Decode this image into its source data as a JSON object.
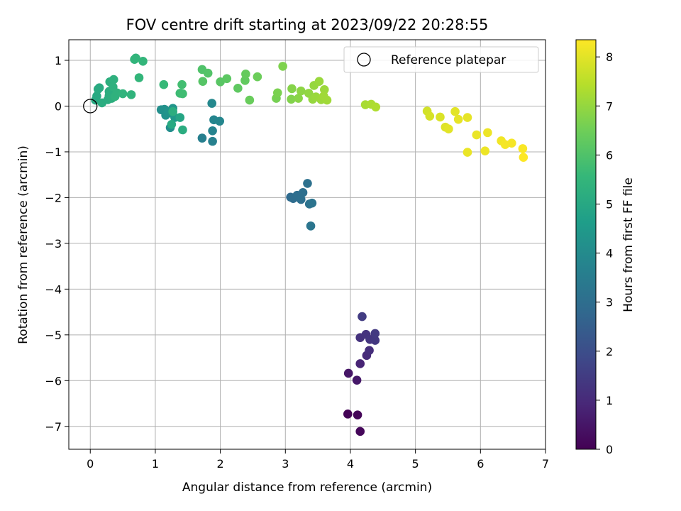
{
  "chart_data": {
    "type": "scatter",
    "title": "FOV centre drift starting at 2023/09/22 20:28:55",
    "xlabel": "Angular distance from reference (arcmin)",
    "ylabel": "Rotation from reference (arcmin)",
    "colorbar_label": "Hours from first FF file",
    "xlim": [
      -0.33,
      7.0
    ],
    "ylim": [
      -7.5,
      1.45
    ],
    "xticks": [
      0,
      1,
      2,
      3,
      4,
      5,
      6,
      7
    ],
    "yticks": [
      1,
      0,
      -1,
      -2,
      -3,
      -4,
      -5,
      -6,
      -7
    ],
    "colorbar_range": [
      0,
      8.35
    ],
    "colorbar_ticks": [
      0,
      1,
      2,
      3,
      4,
      5,
      6,
      7,
      8
    ],
    "colormap": "viridis",
    "grid": true,
    "legend": {
      "label": "Reference platepar",
      "placement": "top-right"
    },
    "reference_point": {
      "x": 0,
      "y": 0
    },
    "points": [
      {
        "x": 3.96,
        "y": -6.73,
        "h": 0.05
      },
      {
        "x": 4.11,
        "y": -6.75,
        "h": 0.1
      },
      {
        "x": 4.15,
        "y": -7.11,
        "h": 0.15
      },
      {
        "x": 3.97,
        "y": -5.84,
        "h": 0.5
      },
      {
        "x": 4.1,
        "y": -5.99,
        "h": 0.55
      },
      {
        "x": 4.15,
        "y": -5.63,
        "h": 0.85
      },
      {
        "x": 4.25,
        "y": -5.45,
        "h": 1.0
      },
      {
        "x": 4.29,
        "y": -5.34,
        "h": 1.1
      },
      {
        "x": 4.15,
        "y": -5.06,
        "h": 1.2
      },
      {
        "x": 4.24,
        "y": -4.99,
        "h": 1.25
      },
      {
        "x": 4.3,
        "y": -5.1,
        "h": 1.3
      },
      {
        "x": 4.38,
        "y": -5.12,
        "h": 1.35
      },
      {
        "x": 4.38,
        "y": -4.97,
        "h": 1.4
      },
      {
        "x": 4.18,
        "y": -4.6,
        "h": 1.5
      },
      {
        "x": 3.08,
        "y": -1.99,
        "h": 2.9
      },
      {
        "x": 3.12,
        "y": -2.02,
        "h": 2.95
      },
      {
        "x": 3.18,
        "y": -1.95,
        "h": 3.0
      },
      {
        "x": 3.24,
        "y": -2.04,
        "h": 3.05
      },
      {
        "x": 3.27,
        "y": -1.89,
        "h": 3.05
      },
      {
        "x": 3.34,
        "y": -1.69,
        "h": 3.1
      },
      {
        "x": 3.37,
        "y": -2.14,
        "h": 3.15
      },
      {
        "x": 3.41,
        "y": -2.12,
        "h": 3.2
      },
      {
        "x": 3.39,
        "y": -2.62,
        "h": 3.25
      },
      {
        "x": 1.72,
        "y": -0.7,
        "h": 3.6
      },
      {
        "x": 1.88,
        "y": -0.77,
        "h": 3.65
      },
      {
        "x": 1.88,
        "y": -0.54,
        "h": 3.75
      },
      {
        "x": 1.9,
        "y": -0.3,
        "h": 3.8
      },
      {
        "x": 1.99,
        "y": -0.33,
        "h": 3.85
      },
      {
        "x": 1.87,
        "y": 0.06,
        "h": 3.9
      },
      {
        "x": 1.23,
        "y": -0.47,
        "h": 4.1
      },
      {
        "x": 1.09,
        "y": -0.08,
        "h": 4.15
      },
      {
        "x": 1.14,
        "y": -0.07,
        "h": 4.2
      },
      {
        "x": 1.16,
        "y": -0.2,
        "h": 4.25
      },
      {
        "x": 1.2,
        "y": -0.12,
        "h": 4.3
      },
      {
        "x": 1.27,
        "y": -0.05,
        "h": 4.35
      },
      {
        "x": 1.26,
        "y": -0.16,
        "h": 4.4
      },
      {
        "x": 1.3,
        "y": -0.25,
        "h": 4.45
      },
      {
        "x": 1.38,
        "y": -0.25,
        "h": 4.9
      },
      {
        "x": 1.25,
        "y": -0.4,
        "h": 5.05
      },
      {
        "x": 1.42,
        "y": -0.52,
        "h": 5.15
      },
      {
        "x": 1.27,
        "y": -0.12,
        "h": 5.2
      },
      {
        "x": 0.08,
        "y": 0.13,
        "h": 5.05
      },
      {
        "x": 0.1,
        "y": 0.22,
        "h": 5.05
      },
      {
        "x": 0.12,
        "y": 0.37,
        "h": 5.1
      },
      {
        "x": 0.14,
        "y": 0.4,
        "h": 5.1
      },
      {
        "x": 0.18,
        "y": 0.07,
        "h": 5.15
      },
      {
        "x": 0.27,
        "y": 0.14,
        "h": 5.15
      },
      {
        "x": 0.29,
        "y": 0.23,
        "h": 5.2
      },
      {
        "x": 0.29,
        "y": 0.32,
        "h": 5.2
      },
      {
        "x": 0.3,
        "y": 0.53,
        "h": 5.25
      },
      {
        "x": 0.33,
        "y": 0.17,
        "h": 5.25
      },
      {
        "x": 0.35,
        "y": 0.42,
        "h": 5.3
      },
      {
        "x": 0.36,
        "y": 0.58,
        "h": 5.3
      },
      {
        "x": 0.38,
        "y": 0.21,
        "h": 5.35
      },
      {
        "x": 0.41,
        "y": 0.29,
        "h": 5.35
      },
      {
        "x": 0.5,
        "y": 0.27,
        "h": 5.4
      },
      {
        "x": 0.63,
        "y": 0.25,
        "h": 5.4
      },
      {
        "x": 0.68,
        "y": 1.02,
        "h": 5.45
      },
      {
        "x": 0.7,
        "y": 1.05,
        "h": 5.45
      },
      {
        "x": 0.75,
        "y": 0.62,
        "h": 5.5
      },
      {
        "x": 0.81,
        "y": 0.98,
        "h": 5.5
      },
      {
        "x": 1.13,
        "y": 0.47,
        "h": 5.6
      },
      {
        "x": 1.38,
        "y": 0.28,
        "h": 5.7
      },
      {
        "x": 1.42,
        "y": 0.27,
        "h": 5.75
      },
      {
        "x": 1.41,
        "y": 0.47,
        "h": 5.8
      },
      {
        "x": 1.72,
        "y": 0.8,
        "h": 6.0
      },
      {
        "x": 1.81,
        "y": 0.72,
        "h": 6.05
      },
      {
        "x": 1.73,
        "y": 0.54,
        "h": 6.1
      },
      {
        "x": 2.0,
        "y": 0.53,
        "h": 6.15
      },
      {
        "x": 2.1,
        "y": 0.6,
        "h": 6.2
      },
      {
        "x": 2.27,
        "y": 0.39,
        "h": 6.25
      },
      {
        "x": 2.38,
        "y": 0.56,
        "h": 6.3
      },
      {
        "x": 2.39,
        "y": 0.7,
        "h": 6.35
      },
      {
        "x": 2.45,
        "y": 0.13,
        "h": 6.4
      },
      {
        "x": 2.57,
        "y": 0.64,
        "h": 6.45
      },
      {
        "x": 2.86,
        "y": 0.17,
        "h": 6.6
      },
      {
        "x": 2.88,
        "y": 0.29,
        "h": 6.65
      },
      {
        "x": 2.96,
        "y": 0.87,
        "h": 6.7
      },
      {
        "x": 3.09,
        "y": 0.15,
        "h": 6.75
      },
      {
        "x": 3.1,
        "y": 0.38,
        "h": 6.8
      },
      {
        "x": 3.2,
        "y": 0.17,
        "h": 6.85
      },
      {
        "x": 3.24,
        "y": 0.33,
        "h": 6.9
      },
      {
        "x": 3.36,
        "y": 0.28,
        "h": 6.95
      },
      {
        "x": 3.42,
        "y": 0.15,
        "h": 7.0
      },
      {
        "x": 3.44,
        "y": 0.45,
        "h": 7.0
      },
      {
        "x": 3.47,
        "y": 0.2,
        "h": 7.05
      },
      {
        "x": 3.52,
        "y": 0.54,
        "h": 7.05
      },
      {
        "x": 3.55,
        "y": 0.14,
        "h": 7.1
      },
      {
        "x": 3.6,
        "y": 0.36,
        "h": 7.1
      },
      {
        "x": 3.64,
        "y": 0.13,
        "h": 7.15
      },
      {
        "x": 3.59,
        "y": 0.22,
        "h": 7.15
      },
      {
        "x": 4.23,
        "y": 0.03,
        "h": 7.25
      },
      {
        "x": 4.32,
        "y": 0.04,
        "h": 7.3
      },
      {
        "x": 4.39,
        "y": -0.02,
        "h": 7.35
      },
      {
        "x": 5.18,
        "y": -0.11,
        "h": 7.8
      },
      {
        "x": 5.22,
        "y": -0.22,
        "h": 7.85
      },
      {
        "x": 5.38,
        "y": -0.24,
        "h": 7.9
      },
      {
        "x": 5.46,
        "y": -0.46,
        "h": 7.95
      },
      {
        "x": 5.51,
        "y": -0.5,
        "h": 8.0
      },
      {
        "x": 5.61,
        "y": -0.12,
        "h": 8.0
      },
      {
        "x": 5.66,
        "y": -0.29,
        "h": 8.05
      },
      {
        "x": 5.8,
        "y": -0.25,
        "h": 8.05
      },
      {
        "x": 5.8,
        "y": -1.01,
        "h": 8.1
      },
      {
        "x": 5.94,
        "y": -0.63,
        "h": 8.1
      },
      {
        "x": 6.07,
        "y": -0.98,
        "h": 8.15
      },
      {
        "x": 6.11,
        "y": -0.58,
        "h": 8.15
      },
      {
        "x": 6.32,
        "y": -0.76,
        "h": 8.2
      },
      {
        "x": 6.38,
        "y": -0.84,
        "h": 8.25
      },
      {
        "x": 6.48,
        "y": -0.81,
        "h": 8.25
      },
      {
        "x": 6.65,
        "y": -0.93,
        "h": 8.3
      },
      {
        "x": 6.66,
        "y": -1.12,
        "h": 8.35
      }
    ]
  }
}
